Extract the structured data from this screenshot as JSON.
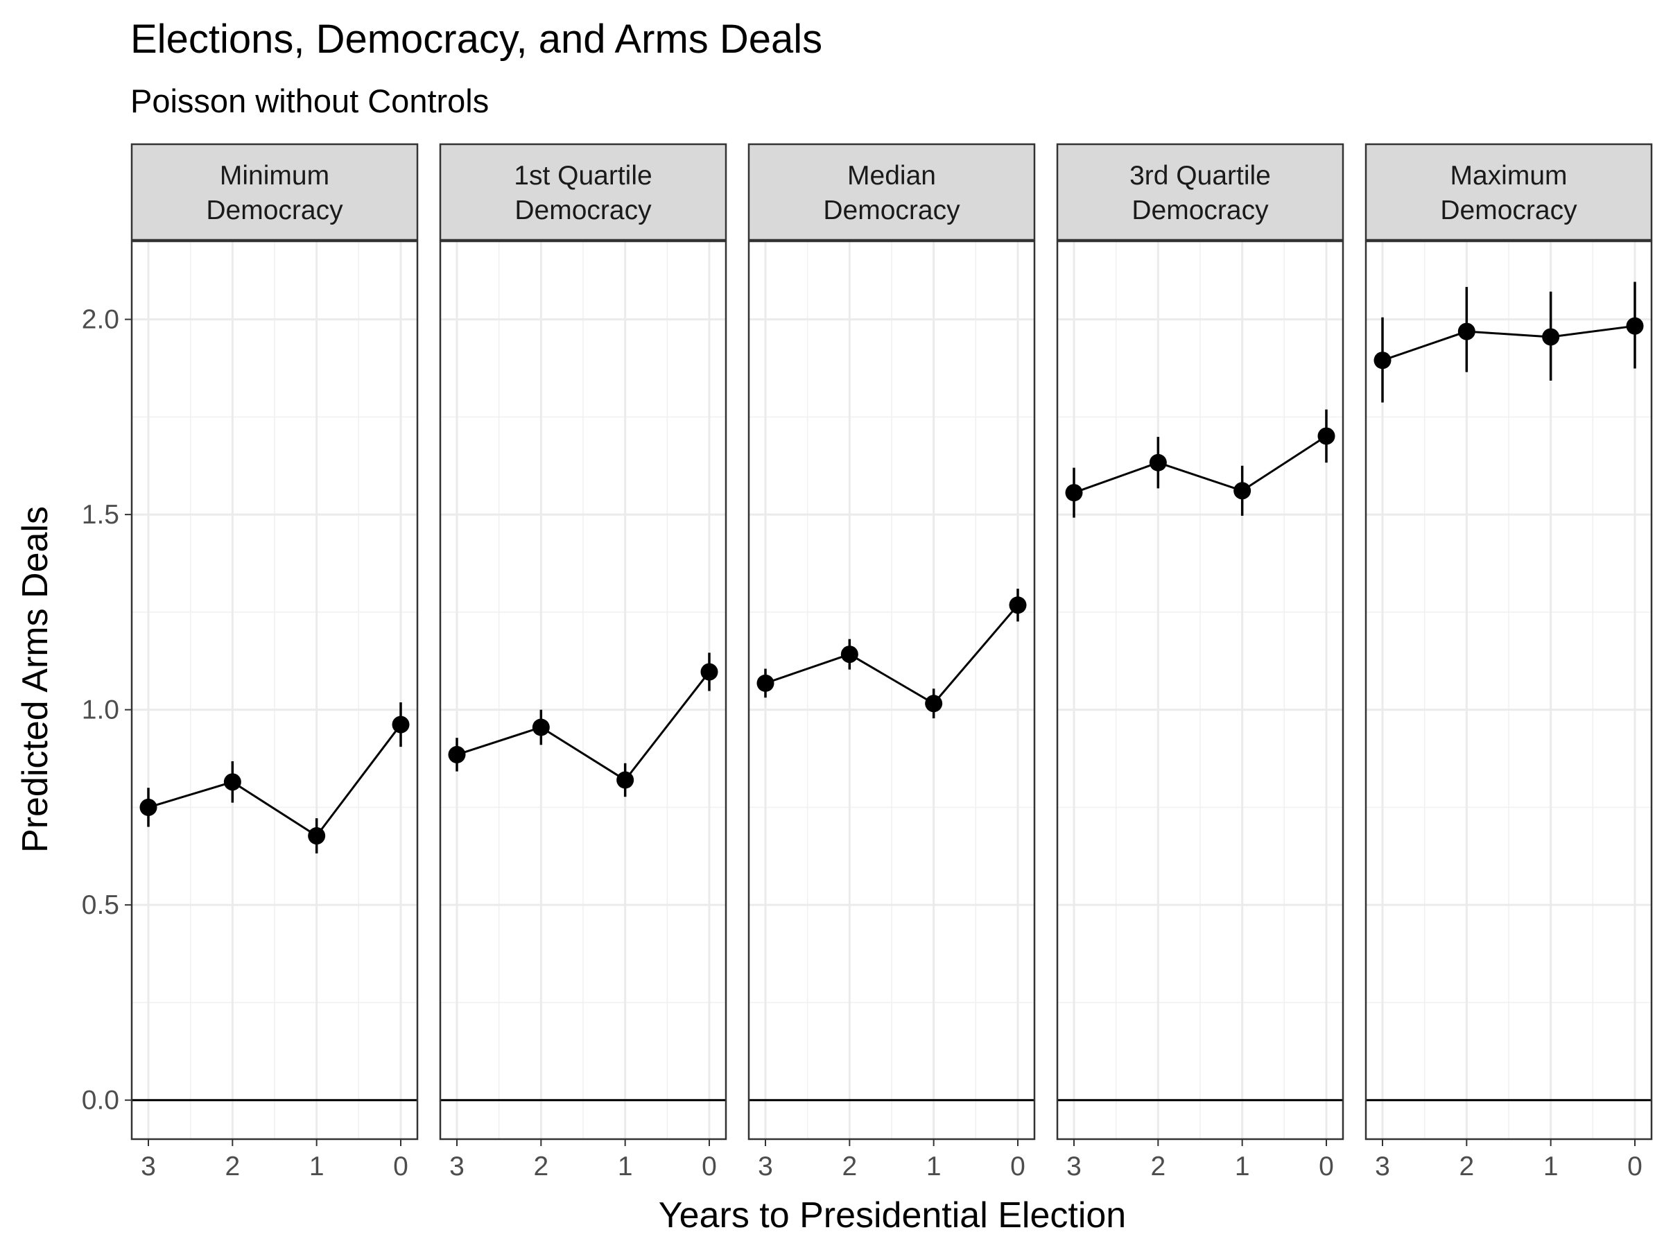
{
  "chart_data": {
    "type": "line",
    "title": "Elections, Democracy, and Arms Deals",
    "subtitle": "Poisson without Controls",
    "xlabel": "Years to Presidential Election",
    "ylabel": "Predicted Arms Deals",
    "x_categories": [
      "3",
      "2",
      "1",
      "0"
    ],
    "y_ticks": [
      "0.0",
      "0.5",
      "1.0",
      "1.5",
      "2.0"
    ],
    "ylim": [
      -0.1,
      2.2
    ],
    "grid": true,
    "reference_line_y": 0,
    "series_color": "#000000",
    "panels": [
      {
        "label_line1": "Minimum",
        "label_line2": "Democracy",
        "estimates": [
          0.75,
          0.815,
          0.677,
          0.962
        ],
        "lower": [
          0.7,
          0.762,
          0.632,
          0.905
        ],
        "upper": [
          0.8,
          0.868,
          0.722,
          1.019
        ]
      },
      {
        "label_line1": "1st Quartile",
        "label_line2": "Democracy",
        "estimates": [
          0.885,
          0.955,
          0.82,
          1.097
        ],
        "lower": [
          0.842,
          0.91,
          0.777,
          1.048
        ],
        "upper": [
          0.928,
          1.0,
          0.863,
          1.146
        ]
      },
      {
        "label_line1": "Median",
        "label_line2": "Democracy",
        "estimates": [
          1.068,
          1.142,
          1.016,
          1.268
        ],
        "lower": [
          1.031,
          1.103,
          0.978,
          1.226
        ],
        "upper": [
          1.105,
          1.181,
          1.054,
          1.31
        ]
      },
      {
        "label_line1": "3rd Quartile",
        "label_line2": "Democracy",
        "estimates": [
          1.556,
          1.633,
          1.561,
          1.701
        ],
        "lower": [
          1.492,
          1.567,
          1.497,
          1.633
        ],
        "upper": [
          1.62,
          1.699,
          1.625,
          1.769
        ]
      },
      {
        "label_line1": "Maximum",
        "label_line2": "Democracy",
        "estimates": [
          1.895,
          1.969,
          1.955,
          1.983
        ],
        "lower": [
          1.787,
          1.865,
          1.843,
          1.874
        ],
        "upper": [
          2.005,
          2.083,
          2.071,
          2.096
        ]
      }
    ]
  }
}
